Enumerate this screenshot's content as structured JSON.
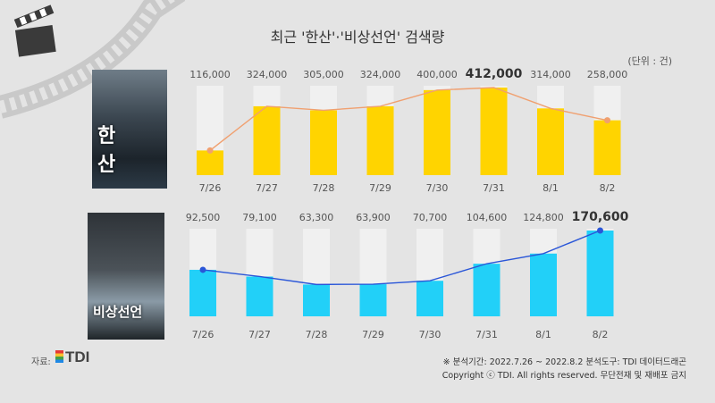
{
  "title": "최근 '한산'·'비상선언' 검색량",
  "unit_label": "(단위 : 건)",
  "posters": [
    {
      "title": "한 산"
    },
    {
      "title": "비상선언"
    }
  ],
  "footer": {
    "source_prefix": "자료:",
    "source_brand": "TDI",
    "analysis_period": "※ 분석기간: 2022.7.26 ~ 2022.8.2   분석도구: TDI 데이터드래곤",
    "copyright": "Copyright ⓒ TDI. All rights reserved. 무단전재 및 재배포 금지"
  },
  "colors": {
    "hansan_bar": "#ffd400",
    "hansan_line": "#f0a070",
    "emergency_bar": "#22d0f8",
    "emergency_line": "#2a56d8",
    "track": "#f0f0f0"
  },
  "chart_data": [
    {
      "type": "bar",
      "categories": [
        "7/26",
        "7/27",
        "7/28",
        "7/29",
        "7/30",
        "7/31",
        "8/1",
        "8/2"
      ],
      "values": [
        116000,
        324000,
        305000,
        324000,
        400000,
        412000,
        314000,
        258000
      ],
      "value_labels": [
        "116,000",
        "324,000",
        "305,000",
        "324,000",
        "400,000",
        "412,000",
        "314,000",
        "258,000"
      ],
      "highlight_index": 5,
      "ylim": [
        0,
        412000
      ],
      "overlay_line": true
    },
    {
      "type": "bar",
      "categories": [
        "7/26",
        "7/27",
        "7/28",
        "7/29",
        "7/30",
        "7/31",
        "8/1",
        "8/2"
      ],
      "values": [
        92500,
        79100,
        63300,
        63900,
        70700,
        104600,
        124800,
        170600
      ],
      "value_labels": [
        "92,500",
        "79,100",
        "63,300",
        "63,900",
        "70,700",
        "104,600",
        "124,800",
        "170,600"
      ],
      "highlight_index": 7,
      "ylim": [
        0,
        170600
      ],
      "overlay_line": true
    }
  ]
}
